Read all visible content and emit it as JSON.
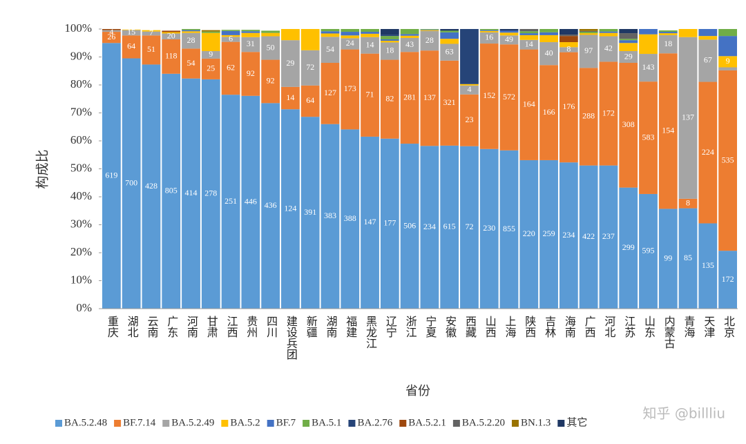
{
  "chart_data": {
    "type": "percent_stacked_bar",
    "y_label": "构成比",
    "x_label": "省份",
    "watermark": "知乎 @billliu",
    "categories": [
      "重庆",
      "湖北",
      "云南",
      "广东",
      "河南",
      "甘肃",
      "江西",
      "贵州",
      "四川",
      "建设兵团",
      "新疆",
      "湖南",
      "福建",
      "黑龙江",
      "辽宁",
      "浙江",
      "宁夏",
      "安徽",
      "西藏",
      "山西",
      "上海",
      "陕西",
      "吉林",
      "海南",
      "广西",
      "河北",
      "江苏",
      "山东",
      "内蒙古",
      "青海",
      "天津",
      "北京"
    ],
    "ylim": [
      0,
      100
    ],
    "yticks": [
      {
        "value": 0,
        "label": "0%"
      },
      {
        "value": 10,
        "label": "10%"
      },
      {
        "value": 20,
        "label": "20%"
      },
      {
        "value": 30,
        "label": "30%"
      },
      {
        "value": 40,
        "label": "40%"
      },
      {
        "value": 50,
        "label": "50%"
      },
      {
        "value": 60,
        "label": "60%"
      },
      {
        "value": 70,
        "label": "70%"
      },
      {
        "value": 80,
        "label": "80%"
      },
      {
        "value": 90,
        "label": "90%"
      },
      {
        "value": 100,
        "label": "100%"
      }
    ],
    "series": [
      {
        "name": "BA.5.2.48",
        "color": "#5b9bd5",
        "values": [
          95,
          89.5,
          87.3,
          84,
          82.3,
          82,
          76.5,
          76.1,
          73.5,
          71.3,
          68.6,
          66,
          64.1,
          61.5,
          60.8,
          59,
          58.2,
          58.3,
          58.1,
          57.1,
          56.6,
          53.1,
          53.1,
          52.3,
          51.2,
          51.2,
          43.3,
          41,
          35.7,
          35.9,
          30.5,
          20.7
        ],
        "counts": [
          619,
          700,
          428,
          805,
          414,
          278,
          251,
          446,
          436,
          124,
          391,
          383,
          388,
          147,
          177,
          506,
          234,
          615,
          72,
          230,
          855,
          220,
          259,
          234,
          422,
          237,
          299,
          595,
          99,
          85,
          135,
          172
        ]
      },
      {
        "name": "BF.7.14",
        "color": "#ed7d31",
        "values": [
          4,
          8.2,
          10.4,
          12.3,
          10.7,
          7.4,
          18.9,
          15.7,
          15.5,
          8.0,
          11.2,
          21.9,
          28.6,
          29.7,
          28.2,
          32.8,
          34.1,
          30.4,
          18.5,
          37.7,
          37.9,
          39.6,
          34.0,
          39.4,
          34.9,
          37.1,
          44.6,
          40.2,
          55.6,
          3.4,
          50.6,
          64.5
        ],
        "counts": [
          26,
          64,
          51,
          118,
          54,
          25,
          62,
          92,
          92,
          14,
          64,
          127,
          173,
          71,
          82,
          281,
          137,
          321,
          23,
          152,
          572,
          164,
          166,
          176,
          288,
          172,
          308,
          583,
          154,
          8,
          224,
          535
        ]
      },
      {
        "name": "BA.5.2.49",
        "color": "#a5a5a5",
        "values": [
          0.6,
          1.9,
          1.4,
          2.1,
          5.6,
          2.7,
          1.8,
          5.3,
          8.4,
          16.7,
          12.6,
          9.3,
          4.0,
          5.9,
          6.2,
          5.0,
          7.0,
          6.0,
          3.2,
          4.0,
          3.2,
          3.4,
          8.2,
          1.8,
          11.8,
          9.1,
          4.2,
          9.9,
          6.5,
          57.8,
          15.1,
          1.1
        ],
        "counts": [
          4,
          15,
          7,
          20,
          28,
          9,
          6,
          31,
          50,
          29,
          72,
          54,
          24,
          14,
          18,
          43,
          28,
          63,
          4,
          16,
          49,
          14,
          40,
          8,
          97,
          42,
          29,
          143,
          18,
          137,
          67,
          null
        ]
      },
      {
        "name": "BA.5.2",
        "color": "#ffc000",
        "values": [
          0,
          0.2,
          0.5,
          0.5,
          0.6,
          6.5,
          0.6,
          1.5,
          1.2,
          4.0,
          7.6,
          1.2,
          1.0,
          1.2,
          0.6,
          0.8,
          0.3,
          1.8,
          0.5,
          0.5,
          1.0,
          1.7,
          2.5,
          1.8,
          0.6,
          1.2,
          2.9,
          7.0,
          0.7,
          2.9,
          1.3,
          4.0
        ],
        "counts": [
          null,
          null,
          null,
          null,
          null,
          null,
          null,
          null,
          null,
          null,
          null,
          null,
          null,
          null,
          null,
          null,
          null,
          null,
          null,
          null,
          null,
          null,
          null,
          null,
          null,
          null,
          null,
          null,
          null,
          null,
          null,
          9
        ]
      },
      {
        "name": "BF.7",
        "color": "#4472c4",
        "values": [
          0,
          0,
          0,
          0,
          0.4,
          0,
          1.5,
          0.6,
          0,
          0,
          0,
          0.8,
          1.3,
          0.7,
          0.5,
          0.6,
          0.2,
          2.3,
          0,
          0.3,
          0.7,
          0.7,
          1.0,
          0,
          0,
          0.5,
          1.0,
          1.9,
          0.5,
          0,
          2.5,
          7.2
        ]
      },
      {
        "name": "BA.5.1",
        "color": "#70ad47",
        "values": [
          0,
          0,
          0,
          0,
          0.4,
          0.5,
          0.4,
          0.5,
          0.8,
          0,
          0,
          0.8,
          1.0,
          1.0,
          1.2,
          1.8,
          0.2,
          0.6,
          0,
          0.4,
          0,
          0.7,
          1.2,
          0,
          0.5,
          0.9,
          0.5,
          0,
          0.5,
          0,
          0,
          2.5
        ]
      },
      {
        "name": "BA.2.76",
        "color": "#264478",
        "values": [
          0,
          0,
          0,
          0,
          0,
          0,
          0,
          0,
          0,
          0,
          0,
          0,
          0,
          0,
          0.5,
          0,
          0,
          0,
          19.7,
          0,
          0,
          0,
          0,
          0,
          0,
          0,
          0,
          0,
          0,
          0,
          0,
          0
        ]
      },
      {
        "name": "BA.5.2.1",
        "color": "#9e480e",
        "values": [
          0.4,
          0,
          0,
          0.5,
          0,
          0,
          0,
          0,
          0,
          0,
          0,
          0,
          0,
          0,
          0,
          0,
          0,
          0,
          0,
          0,
          0,
          0,
          0,
          2.2,
          0,
          0,
          0,
          0,
          0,
          0,
          0,
          0
        ]
      },
      {
        "name": "BA.5.2.20",
        "color": "#636363",
        "values": [
          0,
          0,
          0,
          0,
          0,
          0,
          0,
          0,
          0,
          0,
          0,
          0,
          0,
          0,
          0,
          0,
          0,
          0,
          0,
          0,
          0,
          0.8,
          0,
          0.5,
          0.3,
          0,
          2.0,
          0,
          0,
          0,
          0,
          0
        ]
      },
      {
        "name": "BN.1.3",
        "color": "#997300",
        "values": [
          0,
          0,
          0,
          0,
          0,
          0.5,
          0,
          0,
          0,
          0,
          0,
          0,
          0,
          0,
          0,
          0,
          0,
          0,
          0,
          0,
          0,
          0,
          0,
          0,
          1.0,
          0,
          0,
          0,
          0,
          0,
          0,
          0
        ]
      },
      {
        "name": "其它",
        "color": "#1f3864",
        "values": [
          0,
          0,
          0,
          0,
          0,
          0,
          0,
          0,
          0,
          0,
          0,
          0,
          0,
          0,
          2.0,
          0,
          0,
          0.6,
          0,
          0,
          0.6,
          0,
          0,
          2.0,
          0,
          0,
          1.5,
          0,
          0,
          0,
          0,
          0
        ]
      }
    ]
  }
}
